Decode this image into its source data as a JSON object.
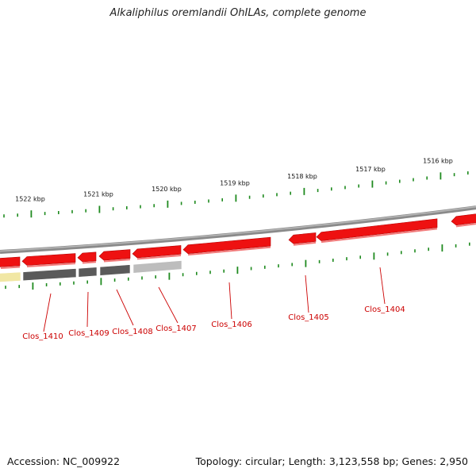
{
  "title": "Alkaliphilus oremlandii OhILAs, complete genome",
  "footer": {
    "accession": "Accession: NC_009922",
    "summary": "Topology: circular; Length: 3,123,558 bp; Genes: 2,950"
  },
  "colors": {
    "tick": "#1e8a1e",
    "backbone": "#8a8a8a",
    "gene_forward": "#ee1111",
    "gene_label": "#cc0000",
    "track_dark": "#5a5a5a",
    "track_light": "#bdbdbd",
    "track_yellow": "#f1e7a4"
  },
  "ruler": {
    "labels": [
      "1522 kbp",
      "1521 kbp",
      "1520 kbp",
      "1519 kbp",
      "1518 kbp",
      "1517 kbp",
      "1516 kbp"
    ]
  },
  "genes": [
    "Clos_1410",
    "Clos_1409",
    "Clos_1408",
    "Clos_1407",
    "Clos_1406",
    "Clos_1405",
    "Clos_1404"
  ]
}
